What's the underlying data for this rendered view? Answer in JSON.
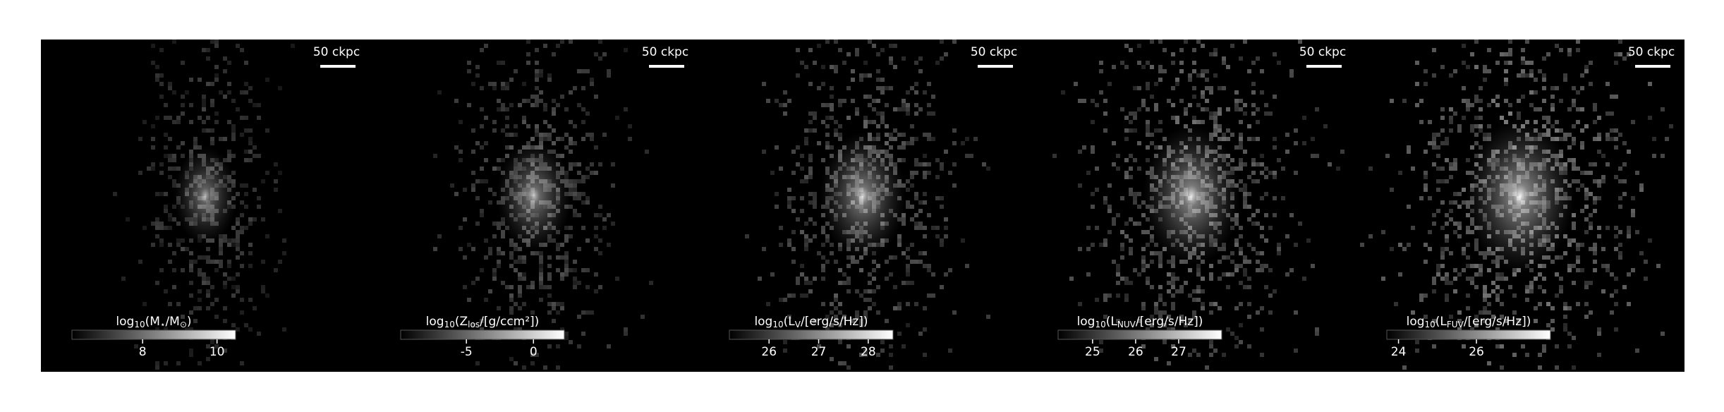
{
  "panels": [
    {
      "scale_bar": "50 ckpc",
      "colorbar": {
        "label": [
          "log",
          "10",
          "(M",
          "⋆",
          "/M",
          "⊙",
          ")"
        ],
        "clim": [
          6.1,
          10.5
        ],
        "ticks": [
          8,
          10
        ]
      }
    },
    {
      "scale_bar": "50 ckpc",
      "colorbar": {
        "label": [
          "log",
          "10",
          "(Z",
          "los",
          "/[g/ccm²])"
        ],
        "clim": [
          -9.9,
          2.3
        ],
        "ticks": [
          -5,
          0
        ]
      }
    },
    {
      "scale_bar": "50 ckpc",
      "colorbar": {
        "label": [
          "log",
          "10",
          "(L",
          "V",
          "/[erg/s/Hz])"
        ],
        "clim": [
          25.2,
          28.5
        ],
        "ticks": [
          26,
          27,
          28
        ]
      }
    },
    {
      "scale_bar": "50 ckpc",
      "colorbar": {
        "label": [
          "log",
          "10",
          "(L",
          "NUV",
          "/[erg/s/Hz])"
        ],
        "clim": [
          24.2,
          28.0
        ],
        "ticks": [
          25,
          26,
          27
        ]
      }
    },
    {
      "scale_bar": "50 ckpc",
      "colorbar": {
        "label": [
          "log",
          "10",
          "(L",
          "FUV",
          "/[erg/s/Hz])"
        ],
        "clim": [
          23.7,
          27.9
        ],
        "ticks": [
          24,
          26
        ]
      }
    }
  ]
}
